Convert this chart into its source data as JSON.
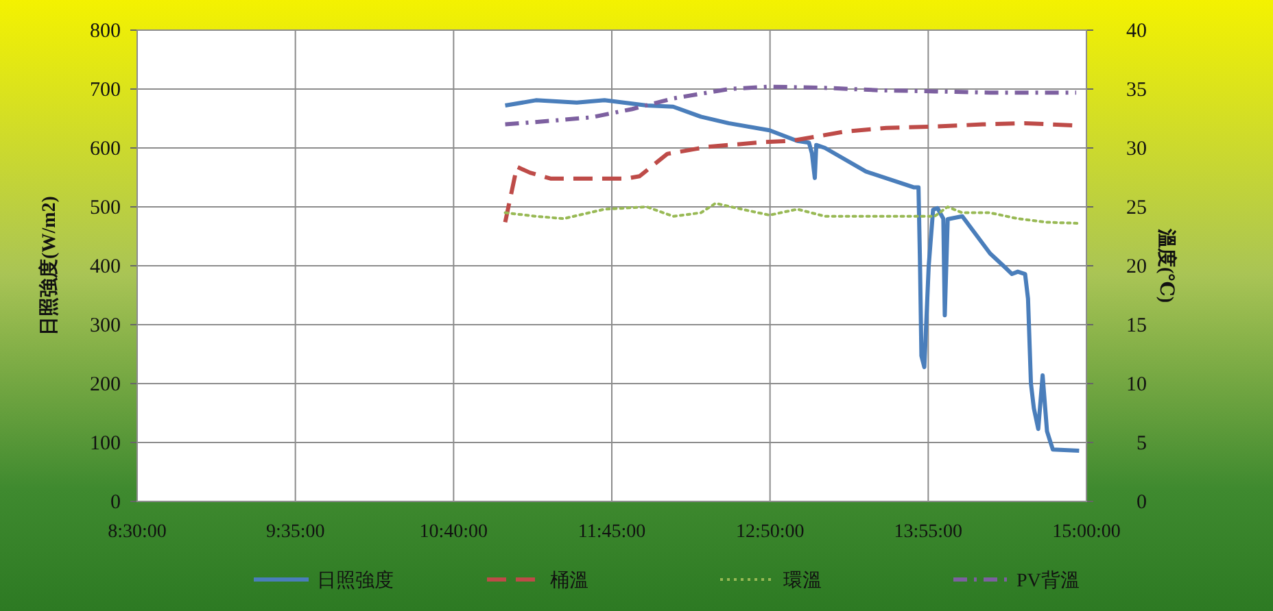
{
  "chart_data": {
    "type": "line",
    "ylabel": "日照強度(W/m2)",
    "y2label": "溫度(℃)",
    "xlim": [
      8.5,
      15.0
    ],
    "xticks": [
      {
        "value": 8.5,
        "label": "8:30:00"
      },
      {
        "value": 9.5833,
        "label": "9:35:00"
      },
      {
        "value": 10.6667,
        "label": "10:40:00"
      },
      {
        "value": 11.75,
        "label": "11:45:00"
      },
      {
        "value": 12.8333,
        "label": "12:50:00"
      },
      {
        "value": 13.9167,
        "label": "13:55:00"
      },
      {
        "value": 15.0,
        "label": "15:00:00"
      }
    ],
    "ylim": [
      0,
      800
    ],
    "yticks": [
      0,
      100,
      200,
      300,
      400,
      500,
      600,
      700,
      800
    ],
    "y2lim": [
      0,
      40
    ],
    "y2ticks": [
      0,
      5,
      10,
      15,
      20,
      25,
      30,
      35,
      40
    ],
    "grid": true,
    "legend": "bottom",
    "series": [
      {
        "name": "日照強度",
        "color": "#4a7ebb",
        "line_style": "solid",
        "x": [
          11.02,
          11.23,
          11.51,
          11.7,
          11.99,
          12.17,
          12.36,
          12.55,
          12.83,
          13.02,
          13.1,
          13.12,
          13.14,
          13.15,
          13.21,
          13.49,
          13.82,
          13.85,
          13.86,
          13.87,
          13.89,
          13.92,
          13.95,
          13.98,
          14.02,
          14.03,
          14.05,
          14.15,
          14.34,
          14.44,
          14.49,
          14.53,
          14.58,
          14.6,
          14.62,
          14.64,
          14.67,
          14.7,
          14.73,
          14.77,
          14.95
        ],
        "values": [
          672,
          681,
          677,
          681,
          672,
          670,
          653,
          642,
          630,
          612,
          609,
          591,
          549,
          605,
          600,
          560,
          533,
          533,
          409,
          247,
          228,
          400,
          495,
          498,
          480,
          316,
          479,
          484,
          421,
          398,
          386,
          390,
          386,
          344,
          200,
          158,
          123,
          214,
          119,
          88,
          86
        ]
      },
      {
        "name": "桶溫",
        "color": "#be4b48",
        "line_style": "dashed",
        "axis": "y2",
        "x": [
          11.02,
          11.1,
          11.19,
          11.33,
          11.51,
          11.85,
          11.94,
          12.13,
          12.41,
          12.79,
          12.98,
          13.35,
          13.63,
          13.92,
          14.29,
          14.58,
          14.93
        ],
        "values": [
          23.7,
          28.4,
          27.9,
          27.4,
          27.4,
          27.4,
          27.6,
          29.5,
          30.1,
          30.5,
          30.6,
          31.4,
          31.7,
          31.8,
          32.0,
          32.1,
          31.9
        ]
      },
      {
        "name": "環溫",
        "color": "#98b954",
        "line_style": "dotted",
        "axis": "y2",
        "x": [
          11.02,
          11.23,
          11.42,
          11.7,
          11.99,
          12.17,
          12.36,
          12.46,
          12.64,
          12.83,
          13.02,
          13.21,
          13.58,
          13.96,
          14.05,
          14.15,
          14.34,
          14.53,
          14.72,
          14.95
        ],
        "values": [
          24.5,
          24.2,
          24.0,
          24.8,
          25.0,
          24.2,
          24.5,
          25.3,
          24.8,
          24.3,
          24.8,
          24.2,
          24.2,
          24.2,
          25.0,
          24.5,
          24.5,
          24.0,
          23.7,
          23.6
        ]
      },
      {
        "name": "PV背溫",
        "color": "#7d60a0",
        "line_style": "dashdot",
        "axis": "y2",
        "x": [
          11.02,
          11.33,
          11.61,
          11.89,
          12.17,
          12.55,
          12.83,
          13.21,
          13.58,
          13.96,
          14.34,
          14.93
        ],
        "values": [
          32.0,
          32.3,
          32.6,
          33.3,
          34.2,
          35.0,
          35.2,
          35.1,
          34.9,
          34.8,
          34.7,
          34.7
        ]
      }
    ]
  }
}
